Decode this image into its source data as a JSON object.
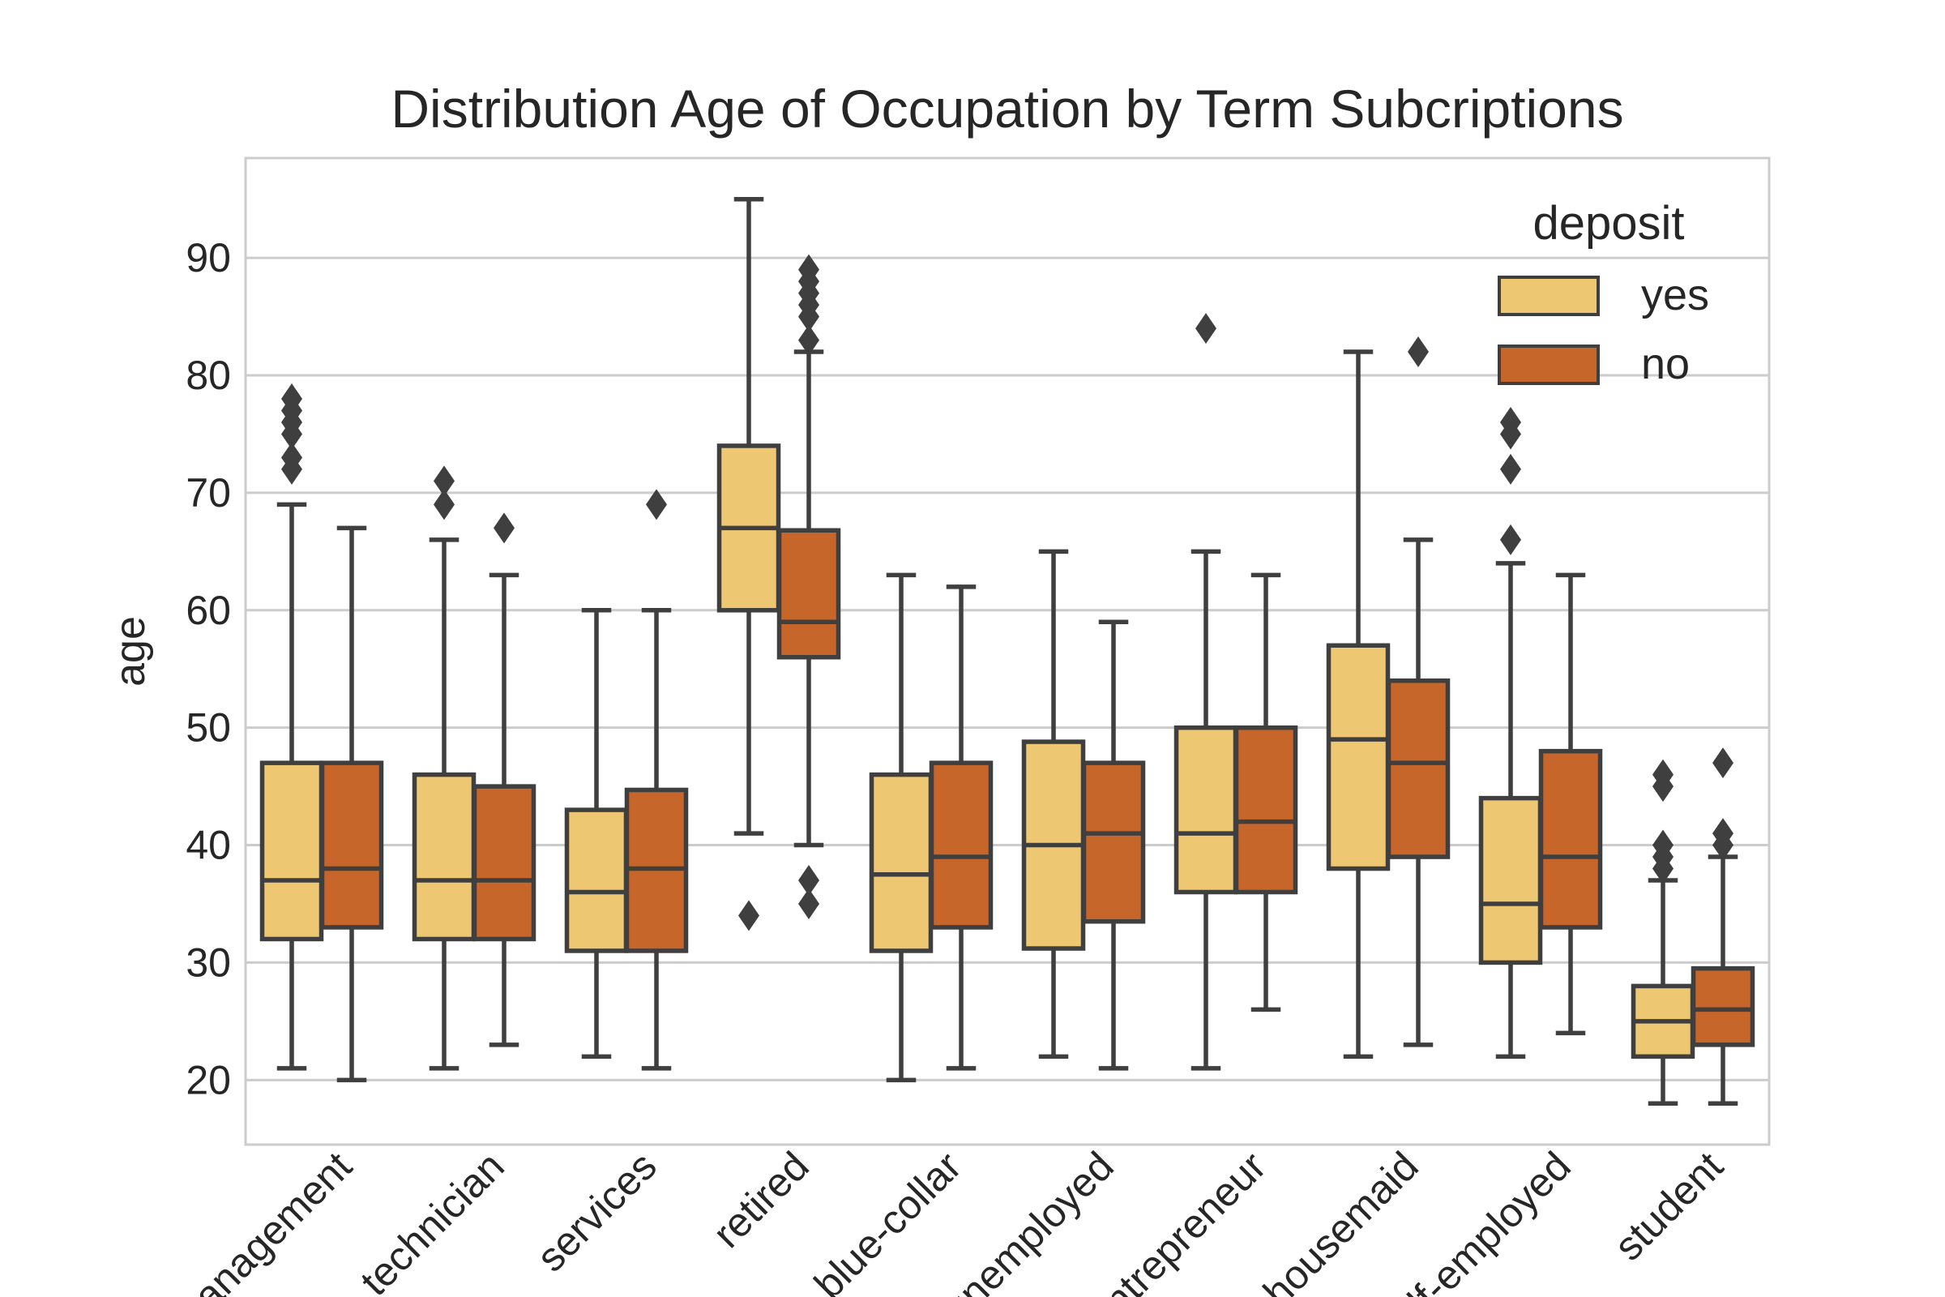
{
  "chart_data": {
    "type": "box",
    "title": "Distribution Age of Occupation by Term Subcriptions",
    "xlabel": "",
    "ylabel": "age",
    "ylim": [
      14.5,
      98.5
    ],
    "yticks": [
      20,
      30,
      40,
      50,
      60,
      70,
      80,
      90
    ],
    "grid": true,
    "legend": {
      "title": "deposit",
      "position": "top-right",
      "entries": [
        {
          "label": "yes",
          "color": "#EEC773"
        },
        {
          "label": "no",
          "color": "#C7662A"
        }
      ]
    },
    "categories": [
      "management",
      "technician",
      "services",
      "retired",
      "blue-collar",
      "unemployed",
      "entrepreneur",
      "housemaid",
      "self-employed",
      "student"
    ],
    "series": [
      {
        "name": "yes",
        "color": "#EEC773",
        "boxes": [
          {
            "min": 21,
            "q1": 32,
            "median": 37,
            "q3": 47,
            "max": 69,
            "outliers": [
              72,
              73,
              75,
              76,
              77,
              78
            ]
          },
          {
            "min": 21,
            "q1": 32,
            "median": 37,
            "q3": 46,
            "max": 66,
            "outliers": [
              69,
              71
            ]
          },
          {
            "min": 22,
            "q1": 31,
            "median": 36,
            "q3": 43,
            "max": 60,
            "outliers": []
          },
          {
            "min": 41,
            "q1": 60,
            "median": 67,
            "q3": 74,
            "max": 95,
            "outliers": [
              34
            ]
          },
          {
            "min": 20,
            "q1": 31,
            "median": 37.5,
            "q3": 46,
            "max": 63,
            "outliers": []
          },
          {
            "min": 22,
            "q1": 31.2,
            "median": 40,
            "q3": 48.8,
            "max": 65,
            "outliers": []
          },
          {
            "min": 21,
            "q1": 36,
            "median": 41,
            "q3": 50,
            "max": 65,
            "outliers": [
              84
            ]
          },
          {
            "min": 22,
            "q1": 38,
            "median": 49,
            "q3": 57,
            "max": 82,
            "outliers": []
          },
          {
            "min": 22,
            "q1": 30,
            "median": 35,
            "q3": 44,
            "max": 64,
            "outliers": [
              66,
              72,
              75,
              76
            ]
          },
          {
            "min": 18,
            "q1": 22,
            "median": 25,
            "q3": 28,
            "max": 37,
            "outliers": [
              38,
              39,
              40,
              45,
              46
            ]
          }
        ]
      },
      {
        "name": "no",
        "color": "#C7662A",
        "boxes": [
          {
            "min": 20,
            "q1": 33,
            "median": 38,
            "q3": 47,
            "max": 67,
            "outliers": []
          },
          {
            "min": 23,
            "q1": 32,
            "median": 37,
            "q3": 45,
            "max": 63,
            "outliers": [
              67
            ]
          },
          {
            "min": 21,
            "q1": 31,
            "median": 38,
            "q3": 44.7,
            "max": 60,
            "outliers": [
              69
            ]
          },
          {
            "min": 40,
            "q1": 56,
            "median": 59,
            "q3": 66.8,
            "max": 82,
            "outliers": [
              35,
              37,
              83,
              85,
              86,
              87,
              88,
              89
            ]
          },
          {
            "min": 21,
            "q1": 33,
            "median": 39,
            "q3": 47,
            "max": 62,
            "outliers": []
          },
          {
            "min": 21,
            "q1": 33.5,
            "median": 41,
            "q3": 47,
            "max": 59,
            "outliers": []
          },
          {
            "min": 26,
            "q1": 36,
            "median": 42,
            "q3": 50,
            "max": 63,
            "outliers": []
          },
          {
            "min": 23,
            "q1": 39,
            "median": 47,
            "q3": 54,
            "max": 66,
            "outliers": [
              82
            ]
          },
          {
            "min": 24,
            "q1": 33,
            "median": 39,
            "q3": 48,
            "max": 63,
            "outliers": []
          },
          {
            "min": 18,
            "q1": 23,
            "median": 26,
            "q3": 29.5,
            "max": 39,
            "outliers": [
              40,
              41,
              47
            ]
          }
        ]
      }
    ]
  }
}
